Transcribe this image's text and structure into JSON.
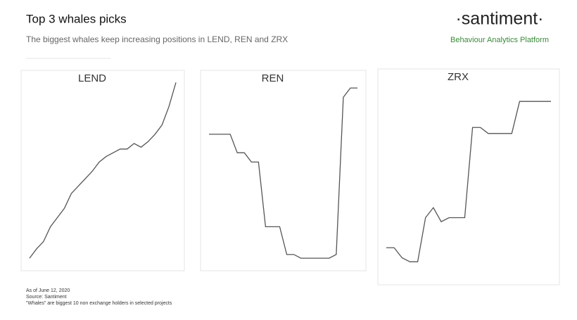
{
  "header": {
    "title": "Top 3 whales picks",
    "subtitle": "The biggest whales keep increasing positions in LEND, REN and ZRX",
    "brand": "·santiment·",
    "tagline": "Behaviour Analytics Platform"
  },
  "chart_data": [
    {
      "type": "line",
      "title": "LEND",
      "color": "#555555",
      "ylim": [
        0,
        100
      ],
      "values": [
        3,
        8,
        12,
        20,
        25,
        30,
        38,
        42,
        46,
        50,
        55,
        58,
        60,
        62,
        62,
        65,
        63,
        66,
        70,
        75,
        85,
        98
      ]
    },
    {
      "type": "line",
      "title": "REN",
      "color": "#555555",
      "ylim": [
        0,
        100
      ],
      "values": [
        70,
        70,
        70,
        70,
        60,
        60,
        55,
        55,
        20,
        20,
        20,
        5,
        5,
        3,
        3,
        3,
        3,
        3,
        5,
        90,
        95,
        95
      ]
    },
    {
      "type": "line",
      "title": "ZRX",
      "color": "#555555",
      "ylim": [
        0,
        100
      ],
      "values": [
        15,
        15,
        10,
        8,
        8,
        30,
        35,
        28,
        30,
        30,
        30,
        75,
        75,
        72,
        72,
        72,
        72,
        88,
        88,
        88,
        88,
        88
      ]
    }
  ],
  "footer": {
    "date": "As of June 12, 2020",
    "source": "Source: Santiment",
    "note": "\"Whales\" are biggest 10 non exchange holders in selected projects"
  }
}
